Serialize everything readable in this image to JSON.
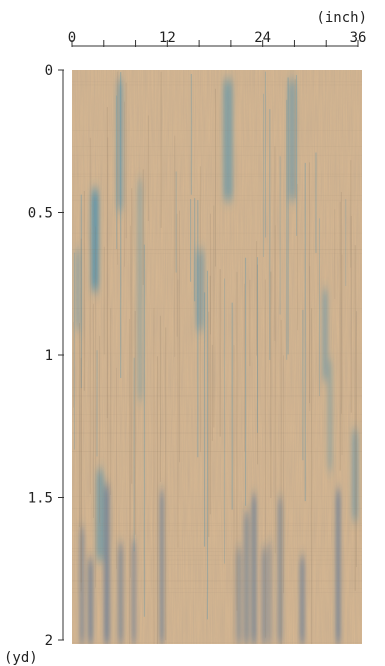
{
  "top_axis": {
    "unit": "(inch)",
    "ticks": [
      {
        "value": 0,
        "label": "0"
      },
      {
        "value": 12,
        "label": "12"
      },
      {
        "value": 24,
        "label": "24"
      },
      {
        "value": 36,
        "label": "36"
      }
    ],
    "minor_step": 4,
    "range": [
      0,
      36
    ]
  },
  "left_axis": {
    "unit": "(yd)",
    "ticks": [
      {
        "value": 0,
        "label": "0"
      },
      {
        "value": 0.5,
        "label": "0.5"
      },
      {
        "value": 1,
        "label": "1"
      },
      {
        "value": 1.5,
        "label": "1.5"
      },
      {
        "value": 2,
        "label": "2"
      }
    ],
    "range": [
      0,
      2
    ]
  },
  "fabric": {
    "base_color": "#d8b892",
    "accent_color": "#3f8fb3",
    "dark_accent_color": "#2e5f9a",
    "pattern": "vertical-streaked-ikat"
  }
}
